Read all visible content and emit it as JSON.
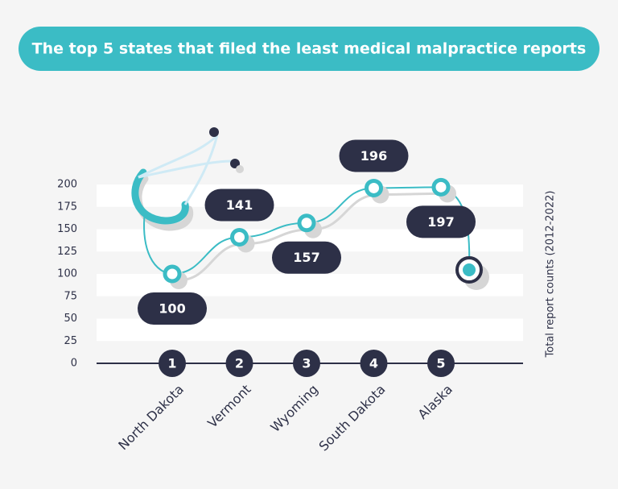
{
  "chart_data": {
    "type": "line",
    "title": "The top 5 states that filed the least medical malpractice reports",
    "categories": [
      "North Dakota",
      "Vermont",
      "Wyoming",
      "South Dakota",
      "Alaska"
    ],
    "ranks": [
      1,
      2,
      3,
      4,
      5
    ],
    "values": [
      100,
      141,
      157,
      196,
      197
    ],
    "color": "#3bbcc5",
    "y_axis_label": "Total report counts (2012-2022)",
    "ylim": [
      0,
      200
    ],
    "yticks": [
      0,
      25,
      50,
      75,
      100,
      125,
      150,
      175,
      200
    ],
    "grid": "bands"
  }
}
